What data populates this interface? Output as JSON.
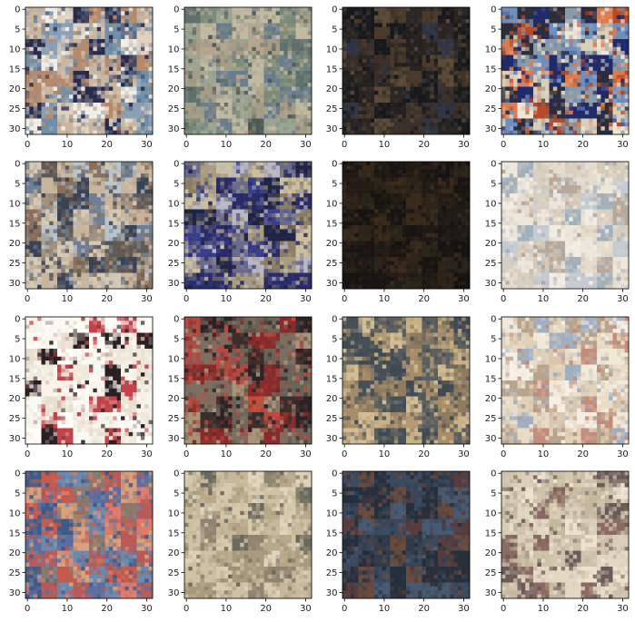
{
  "chart_data": {
    "type": "heatmap",
    "title": "",
    "description_of_content": "",
    "grid": false,
    "layout": {
      "rows": 4,
      "cols": 4
    },
    "image_size": [
      32,
      32
    ],
    "x_ticks": [
      0,
      10,
      20,
      30
    ],
    "y_ticks": [
      0,
      5,
      10,
      15,
      20,
      25,
      30
    ],
    "xlim": [
      -0.5,
      31.5
    ],
    "ylim": [
      31.5,
      -0.5
    ],
    "panels": [
      {
        "palette": [
          "#6f8fa8",
          "#c9b6a0",
          "#2a2a4a",
          "#e0d2c0",
          "#8aa0b8",
          "#b58a6a",
          "#f1eee6",
          "#5a6b8a"
        ]
      },
      {
        "palette": [
          "#7c8c78",
          "#a69c86",
          "#5f6f6a",
          "#c2b9a3",
          "#6b7d8d",
          "#9aa591",
          "#4f5a58",
          "#b3a68d"
        ]
      },
      {
        "palette": [
          "#1b1a1a",
          "#2a2624",
          "#3a3029",
          "#16181c",
          "#4a3a2c",
          "#23201e",
          "#5b4a36",
          "#303545"
        ]
      },
      {
        "palette": [
          "#1f2a6a",
          "#d8cfb8",
          "#b34a2a",
          "#6c8fc0",
          "#f0e6d6",
          "#2c2c3a",
          "#e07a4a",
          "#8a9aa8"
        ]
      },
      {
        "palette": [
          "#a0927e",
          "#6f7f96",
          "#c8b49a",
          "#3a4356",
          "#d6c9b4",
          "#8a6f5a",
          "#b8c4cc",
          "#5f5a55"
        ]
      },
      {
        "palette": [
          "#3a3f8a",
          "#a89b7e",
          "#1f2442",
          "#cbbf9e",
          "#6a6a8c",
          "#8b7e62",
          "#2a2c6a",
          "#b7b8c9"
        ]
      },
      {
        "palette": [
          "#1a1512",
          "#241d16",
          "#2f241a",
          "#171412",
          "#3a2a1c",
          "#1f1a16",
          "#2a2419",
          "#141311"
        ]
      },
      {
        "palette": [
          "#f2ede2",
          "#e6dccd",
          "#d4c8b6",
          "#c4cbd3",
          "#b7a89a",
          "#ede6da",
          "#9fb1bf",
          "#d9cfc0"
        ]
      },
      {
        "palette": [
          "#fbf9f3",
          "#f6f2e8",
          "#fffdf7",
          "#efe9dc",
          "#2a1f23",
          "#c2434a",
          "#f9f4ea",
          "#e7dfcf"
        ]
      },
      {
        "palette": [
          "#8a2a2a",
          "#c74a3a",
          "#2a2226",
          "#6a6458",
          "#a89478",
          "#3a2f2c",
          "#b04a42",
          "#7b6e62"
        ]
      },
      {
        "palette": [
          "#b49a72",
          "#c9b186",
          "#3f4a52",
          "#a68d68",
          "#5a5f5f",
          "#d2bd94",
          "#8e7a5e",
          "#47505a"
        ]
      },
      {
        "palette": [
          "#f1e8d8",
          "#e8dcc6",
          "#d8c7ae",
          "#f6efe3",
          "#c48b7a",
          "#9fb0c4",
          "#e0d1b8",
          "#b8a48c"
        ]
      },
      {
        "palette": [
          "#3e5a8a",
          "#c75a4a",
          "#d9a07a",
          "#5a6ea0",
          "#e07a6a",
          "#8a7a6a",
          "#b75a5a",
          "#6a8ab0"
        ]
      },
      {
        "palette": [
          "#c8b89a",
          "#d7c9ac",
          "#a99a7e",
          "#e0d4ba",
          "#6a6a60",
          "#b7a88a",
          "#cfc1a4",
          "#8e8470"
        ]
      },
      {
        "palette": [
          "#2f3a4a",
          "#3a4a5f",
          "#22303e",
          "#5a3a3a",
          "#475a72",
          "#2a2e38",
          "#6a4a3a",
          "#3a4458"
        ]
      },
      {
        "palette": [
          "#d9cfb8",
          "#e2d8c2",
          "#cdc2aa",
          "#6a5a58",
          "#ebe3cf",
          "#c3b79e",
          "#8a6a62",
          "#d4c8ae"
        ]
      }
    ]
  }
}
